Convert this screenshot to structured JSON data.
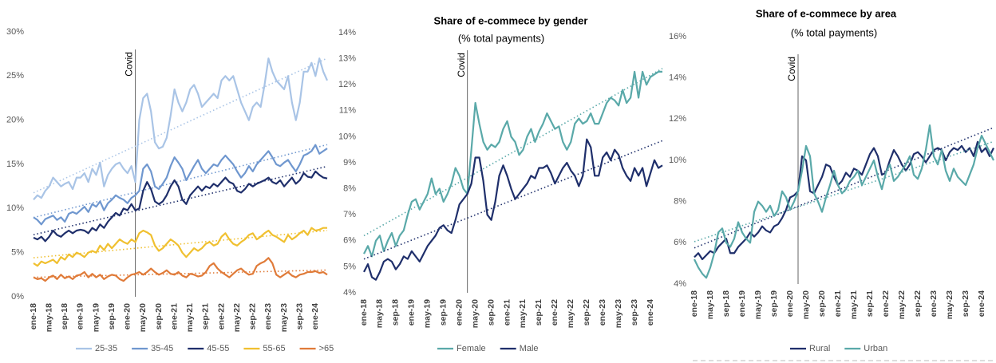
{
  "chart_data": [
    {
      "type": "line",
      "categories": [
        "ene-18",
        null,
        null,
        null,
        "may-18",
        null,
        null,
        null,
        "sep-18",
        null,
        null,
        null,
        "ene-19",
        null,
        null,
        null,
        "may-19",
        null,
        null,
        null,
        "sep-19",
        null,
        null,
        null,
        "ene-20",
        null,
        null,
        null,
        "may-20",
        null,
        null,
        null,
        "sep-20",
        null,
        null,
        null,
        "ene-21",
        null,
        null,
        null,
        "may-21",
        null,
        null,
        null,
        "sep-21",
        null,
        null,
        null,
        "ene-22",
        null,
        null,
        null,
        "may-22",
        null,
        null,
        null,
        "sep-22",
        null,
        null,
        null,
        "ene-23",
        null,
        null,
        null,
        "may-23",
        null,
        null,
        null,
        "sep-23",
        null,
        null,
        null,
        "ene-24",
        null,
        null,
        null
      ],
      "annotation": "Covid",
      "ylim": [
        0,
        30
      ],
      "yticks": [
        {
          "value": 0,
          "label": "0%"
        },
        {
          "value": 5,
          "label": "5%"
        },
        {
          "value": 10,
          "label": "10%"
        },
        {
          "value": 15,
          "label": "15%"
        },
        {
          "value": 20,
          "label": "20%"
        },
        {
          "value": 25,
          "label": "25%"
        },
        {
          "value": 30,
          "label": "30%"
        }
      ],
      "trendline": true,
      "legend": "bottom",
      "series": [
        {
          "name": "25-35",
          "color": "#a9c4e6",
          "values": [
            11,
            11.5,
            11.2,
            12,
            12.5,
            13.5,
            13,
            12.5,
            12.8,
            13,
            12.2,
            13.5,
            13.5,
            14,
            13,
            14.5,
            13.8,
            15.2,
            12.5,
            13.8,
            14.5,
            15,
            15.2,
            14.5,
            14,
            14.8,
            13,
            20,
            22.5,
            23,
            21,
            17.5,
            16.8,
            17,
            18,
            20.5,
            23.5,
            22,
            21,
            22,
            23.5,
            24,
            23,
            21.5,
            22,
            22.5,
            23,
            22.5,
            24.5,
            25,
            24.5,
            25,
            23.5,
            22,
            21,
            20,
            21.5,
            22,
            21.5,
            24,
            27,
            25.5,
            24.5,
            24,
            23.5,
            25,
            22,
            20,
            22,
            25.5,
            25.5,
            26.5,
            25,
            27,
            25.5,
            24.5
          ]
        },
        {
          "name": "35-45",
          "color": "#6f97cf",
          "values": [
            9,
            8.7,
            8.2,
            8.8,
            9,
            9.2,
            8.7,
            9,
            8.5,
            9.4,
            9.6,
            9.4,
            9.8,
            10.2,
            9.6,
            10.5,
            10.2,
            10.8,
            9.8,
            10.6,
            11,
            11.5,
            11.2,
            11,
            10.6,
            11.2,
            11.5,
            12,
            14.5,
            15,
            14.2,
            12.5,
            12.2,
            12.8,
            13.5,
            14.8,
            15.8,
            15.2,
            14.5,
            13.2,
            14,
            14.8,
            15.5,
            14.5,
            14,
            14.5,
            15,
            14.8,
            15.5,
            16,
            15.5,
            15,
            14.2,
            13.5,
            14,
            14.8,
            14.2,
            15,
            15.5,
            16,
            16.5,
            15.8,
            15,
            14.8,
            15.2,
            15.5,
            14.8,
            14.2,
            15,
            16,
            16.2,
            16.5,
            17.2,
            16.2,
            16.5,
            16.8
          ]
        },
        {
          "name": "45-55",
          "color": "#1f2f6b",
          "values": [
            6.7,
            6.5,
            6.8,
            6.3,
            6.8,
            7.5,
            7,
            6.8,
            7.2,
            7.5,
            7.2,
            7.5,
            7.6,
            7.5,
            7.2,
            7.8,
            7.5,
            8.2,
            7.8,
            8.5,
            9,
            9.5,
            9.2,
            10,
            9.8,
            10.5,
            9.8,
            10,
            12,
            13,
            12.2,
            10.8,
            10.5,
            10.8,
            11.5,
            12.5,
            13.2,
            12.5,
            11,
            10.5,
            11.5,
            12,
            12.5,
            12,
            12.5,
            12.3,
            12.8,
            12.5,
            13,
            13.5,
            13,
            12.8,
            12,
            11.8,
            12.2,
            12.8,
            12.5,
            12.8,
            13,
            13.2,
            13.5,
            13,
            12.8,
            13.2,
            12.5,
            13,
            13.5,
            12.8,
            13.2,
            14,
            13.6,
            13.5,
            14.2,
            13.8,
            13.5,
            13.4
          ]
        },
        {
          "name": "55-65",
          "color": "#f0c030",
          "values": [
            3.8,
            3.5,
            4,
            3.8,
            4,
            4.2,
            3.8,
            4.5,
            4.2,
            4.8,
            4.5,
            5,
            4.8,
            4.5,
            5,
            5.2,
            5,
            5.8,
            5.3,
            6,
            5.5,
            6,
            6.5,
            6.2,
            6,
            6.5,
            6.2,
            7.2,
            7.5,
            7.3,
            7,
            5.8,
            5.2,
            5.5,
            6,
            6.5,
            6.2,
            5.8,
            5,
            4.5,
            5,
            5.5,
            5.2,
            5.5,
            6,
            6.2,
            5.8,
            6,
            6.8,
            7.2,
            6.5,
            6,
            5.8,
            6.2,
            6.5,
            7,
            7.2,
            6.5,
            6.8,
            7.2,
            7.5,
            7,
            6.8,
            6.5,
            6.2,
            7,
            6.5,
            6.8,
            7.2,
            7.5,
            7,
            7.8,
            7.5,
            7.6,
            7.8,
            7.8
          ]
        },
        {
          "name": ">65",
          "color": "#e07b39",
          "values": [
            2.2,
            2,
            2.1,
            1.8,
            2.2,
            2.4,
            2,
            2.5,
            2.1,
            2.3,
            2,
            2.4,
            2.5,
            2.8,
            2.2,
            2.6,
            2.2,
            2.5,
            2,
            2.3,
            2.5,
            2.4,
            2,
            1.8,
            2.2,
            2.5,
            2.6,
            2.8,
            2.5,
            2.8,
            3.2,
            2.8,
            2.5,
            2.7,
            3,
            2.6,
            2.5,
            2.8,
            2.4,
            2.2,
            2.6,
            2.5,
            2.3,
            2.4,
            2.8,
            3.5,
            3.8,
            3.2,
            2.8,
            2.5,
            2.2,
            2.6,
            3,
            3.2,
            2.8,
            2.5,
            2.6,
            3.5,
            3.8,
            4,
            4.4,
            3.8,
            2.5,
            2.2,
            2.5,
            2.8,
            2.4,
            2.2,
            2.5,
            2.6,
            2.8,
            2.8,
            2.9,
            2.7,
            2.8,
            2.5
          ]
        }
      ]
    },
    {
      "type": "line",
      "title": "Share of e-commece  by gender",
      "subtitle": "(% total payments)",
      "categories": [
        "ene-18",
        null,
        null,
        null,
        "may-18",
        null,
        null,
        null,
        "sep-18",
        null,
        null,
        null,
        "ene-19",
        null,
        null,
        null,
        "may-19",
        null,
        null,
        null,
        "sep-19",
        null,
        null,
        null,
        "ene-20",
        null,
        null,
        null,
        "may-20",
        null,
        null,
        null,
        "sep-20",
        null,
        null,
        null,
        "ene-21",
        null,
        null,
        null,
        "may-21",
        null,
        null,
        null,
        "sep-21",
        null,
        null,
        null,
        "ene-22",
        null,
        null,
        null,
        "may-22",
        null,
        null,
        null,
        "sep-22",
        null,
        null,
        null,
        "ene-23",
        null,
        null,
        null,
        "may-23",
        null,
        null,
        null,
        "sep-23",
        null,
        null,
        null,
        "ene-24",
        null,
        null,
        null
      ],
      "annotation": "Covid",
      "ylim": [
        4,
        14
      ],
      "yticks": [
        {
          "value": 4,
          "label": "4%"
        },
        {
          "value": 5,
          "label": "5%"
        },
        {
          "value": 6,
          "label": "6%"
        },
        {
          "value": 7,
          "label": "7%"
        },
        {
          "value": 8,
          "label": "8%"
        },
        {
          "value": 9,
          "label": "9%"
        },
        {
          "value": 10,
          "label": "10%"
        },
        {
          "value": 11,
          "label": "11%"
        },
        {
          "value": 12,
          "label": "12%"
        },
        {
          "value": 13,
          "label": "13%"
        },
        {
          "value": 14,
          "label": "14%"
        }
      ],
      "trendline": true,
      "legend": "bottom",
      "series": [
        {
          "name": "Female",
          "color": "#5aa9a9",
          "values": [
            5.5,
            5.8,
            5.4,
            6,
            6.2,
            5.6,
            6,
            6.3,
            5.8,
            6.2,
            6.4,
            7,
            7.5,
            7.6,
            7.2,
            7.5,
            7.8,
            8.4,
            7.8,
            8,
            7.5,
            7.8,
            8.2,
            8.8,
            8.5,
            8,
            7.8,
            9.5,
            11.3,
            10.5,
            9.8,
            9.5,
            9.7,
            9.6,
            9.8,
            10.3,
            10.6,
            10,
            9.8,
            9.3,
            9.5,
            10,
            10.3,
            9.8,
            10.2,
            10.5,
            10.9,
            10.6,
            10.3,
            10.4,
            9.8,
            9.5,
            9.8,
            10.5,
            10.7,
            10.5,
            10.6,
            10.9,
            10.5,
            10.5,
            10.9,
            11.3,
            11.5,
            11.4,
            11.2,
            11.8,
            11.3,
            11.5,
            12.5,
            11.5,
            12.5,
            12,
            12.3,
            12.4,
            12.5,
            12.5
          ]
        },
        {
          "name": "Male",
          "color": "#1f2f6b",
          "values": [
            4.8,
            5.1,
            4.6,
            4.5,
            4.8,
            5.2,
            5.3,
            5.2,
            4.9,
            5.1,
            5.4,
            5.3,
            5.6,
            5.4,
            5.2,
            5.5,
            5.8,
            6,
            6.2,
            6.5,
            6.6,
            6.4,
            6.3,
            6.8,
            7.4,
            7.6,
            7.8,
            8.2,
            9.2,
            9.2,
            8.3,
            7,
            6.8,
            7.5,
            8.5,
            8.9,
            8.5,
            8,
            7.6,
            7.8,
            8,
            8.2,
            8.5,
            8.4,
            8.8,
            8.8,
            8.9,
            8.6,
            8.2,
            8.5,
            8.8,
            9,
            8.7,
            8.5,
            8.1,
            8.5,
            9.9,
            9.6,
            8.5,
            8.5,
            9.2,
            9.4,
            9.1,
            9.5,
            9.3,
            8.8,
            8.5,
            8.3,
            8.8,
            8.5,
            8.8,
            8.1,
            8.6,
            9.1,
            8.8,
            8.9
          ]
        }
      ]
    },
    {
      "type": "line",
      "title": "Share of e-commece  by area",
      "subtitle": "(% total payments)",
      "categories": [
        "ene-18",
        null,
        null,
        null,
        "may-18",
        null,
        null,
        null,
        "sep-18",
        null,
        null,
        null,
        "ene-19",
        null,
        null,
        null,
        "may-19",
        null,
        null,
        null,
        "sep-19",
        null,
        null,
        null,
        "ene-20",
        null,
        null,
        null,
        "may-20",
        null,
        null,
        null,
        "sep-20",
        null,
        null,
        null,
        "ene-21",
        null,
        null,
        null,
        "may-21",
        null,
        null,
        null,
        "sep-21",
        null,
        null,
        null,
        "ene-22",
        null,
        null,
        null,
        "may-22",
        null,
        null,
        null,
        "sep-22",
        null,
        null,
        null,
        "ene-23",
        null,
        null,
        null,
        "may-23",
        null,
        null,
        null,
        "sep-23",
        null,
        null,
        null,
        "ene-24",
        null,
        null,
        null
      ],
      "annotation": "Covid",
      "ylim": [
        4,
        16
      ],
      "yticks": [
        {
          "value": 4,
          "label": "4%"
        },
        {
          "value": 6,
          "label": "6%"
        },
        {
          "value": 8,
          "label": "8%"
        },
        {
          "value": 10,
          "label": "10%"
        },
        {
          "value": 12,
          "label": "12%"
        },
        {
          "value": 14,
          "label": "14%"
        },
        {
          "value": 16,
          "label": "16%"
        }
      ],
      "trendline": true,
      "legend": "bottom",
      "series": [
        {
          "name": "Rural",
          "color": "#1f2f6b",
          "values": [
            5.3,
            5.5,
            5.2,
            5.4,
            5.6,
            5.5,
            5.8,
            6,
            6.2,
            5.5,
            5.5,
            5.8,
            6,
            6.2,
            6.5,
            6.3,
            6.5,
            6.8,
            6.6,
            6.5,
            6.8,
            6.9,
            7.2,
            7.6,
            8.2,
            8.3,
            8.5,
            10.2,
            10,
            8.5,
            8.4,
            8.8,
            9.2,
            9.8,
            9.7,
            9.2,
            8.8,
            9,
            9.4,
            9.2,
            9.6,
            9.5,
            9.3,
            9.8,
            10.3,
            10.6,
            10.2,
            9.3,
            9.4,
            10,
            10.5,
            10.2,
            9.8,
            9.5,
            9.8,
            10.3,
            10.4,
            10.2,
            9.9,
            10.2,
            10.5,
            10.6,
            10.5,
            10,
            10.4,
            10.6,
            10.5,
            10.7,
            10.4,
            10.6,
            10.2,
            10.9,
            10.4,
            10.6,
            10.2,
            10.6
          ]
        },
        {
          "name": "Urban",
          "color": "#5aa9a9",
          "values": [
            5.2,
            4.8,
            4.5,
            4.3,
            4.8,
            5.5,
            6.5,
            6.7,
            6,
            5.8,
            6.2,
            7,
            6.5,
            6.2,
            6,
            7.5,
            8,
            7.8,
            7.5,
            7.8,
            7.3,
            7.6,
            8.5,
            8.2,
            7.6,
            8,
            8.5,
            9.5,
            10.7,
            10.2,
            8.4,
            8,
            7.5,
            8.2,
            8.8,
            9.5,
            8.8,
            8.4,
            8.6,
            9,
            9.2,
            9.5,
            8.8,
            9.2,
            9.6,
            10,
            9.2,
            8.6,
            9.4,
            9.8,
            9,
            9.2,
            9.5,
            9.8,
            10.2,
            9.3,
            9.1,
            9.6,
            10.5,
            11.7,
            10.2,
            9.8,
            10.5,
            9.5,
            9,
            9.6,
            9.2,
            9,
            8.8,
            9.3,
            9.8,
            10.6,
            11.2,
            10.8,
            10.4,
            10
          ]
        }
      ]
    }
  ]
}
